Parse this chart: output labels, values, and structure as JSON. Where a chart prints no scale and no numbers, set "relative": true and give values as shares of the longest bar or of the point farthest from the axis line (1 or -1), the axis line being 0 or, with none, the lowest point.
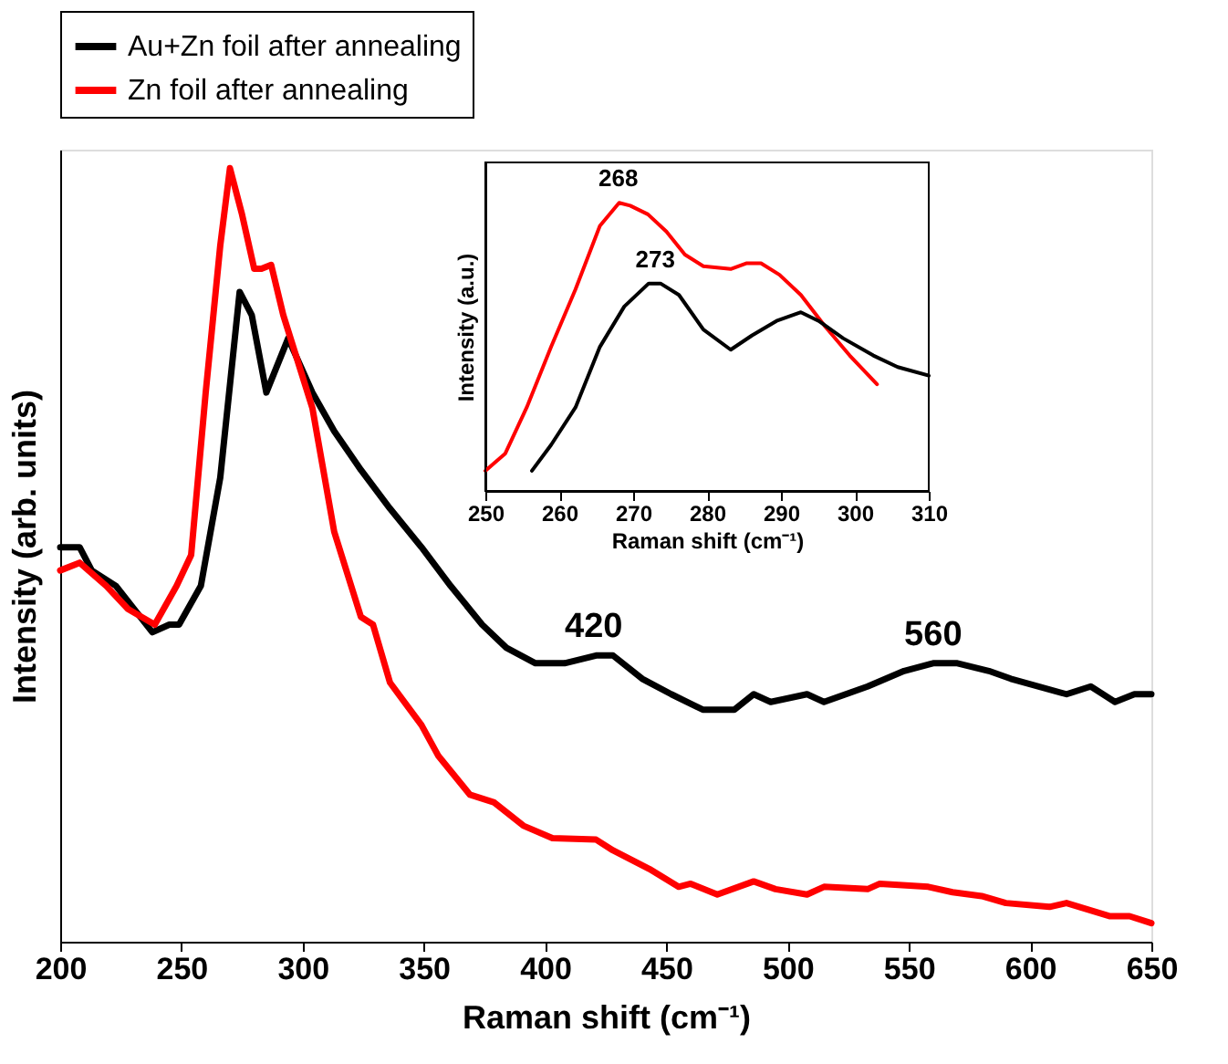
{
  "chart_data": [
    {
      "type": "line",
      "xlabel": "Raman shift (cm⁻¹)",
      "ylabel": "Intensity (arb. units)",
      "xlim": [
        200,
        650
      ],
      "xticks": [
        200,
        250,
        300,
        350,
        400,
        450,
        500,
        550,
        600,
        650
      ],
      "relative": true,
      "legend": "top",
      "series": [
        {
          "name": "Au+Zn foil after annealing",
          "color": "#000000",
          "x": [
            200,
            208,
            213,
            223,
            238,
            245,
            249,
            258,
            266,
            274,
            279,
            285,
            294,
            304,
            313,
            324,
            336,
            349,
            361,
            374,
            384,
            396,
            408,
            421,
            428,
            440,
            452,
            465,
            478,
            486,
            493,
            508,
            515,
            533,
            548,
            560,
            570,
            583,
            592,
            615,
            625,
            635,
            643,
            650
          ],
          "values": [
            0.51,
            0.51,
            0.48,
            0.46,
            0.4,
            0.41,
            0.41,
            0.46,
            0.6,
            0.84,
            0.81,
            0.71,
            0.78,
            0.71,
            0.66,
            0.61,
            0.56,
            0.51,
            0.46,
            0.41,
            0.38,
            0.36,
            0.36,
            0.37,
            0.37,
            0.34,
            0.32,
            0.3,
            0.3,
            0.32,
            0.31,
            0.32,
            0.31,
            0.33,
            0.35,
            0.36,
            0.36,
            0.35,
            0.34,
            0.32,
            0.33,
            0.31,
            0.32,
            0.32
          ]
        },
        {
          "name": "Zn foil after annealing",
          "color": "#ff0000",
          "x": [
            200,
            208,
            219,
            228,
            239,
            248,
            254,
            260,
            266,
            270,
            275,
            280,
            283,
            287,
            292,
            304,
            313,
            324,
            329,
            336,
            349,
            356,
            369,
            379,
            391,
            403,
            421,
            428,
            443,
            455,
            460,
            471,
            486,
            495,
            508,
            515,
            533,
            538,
            558,
            568,
            580,
            590,
            608,
            615,
            633,
            641,
            650
          ],
          "values": [
            0.48,
            0.49,
            0.46,
            0.43,
            0.41,
            0.46,
            0.5,
            0.71,
            0.9,
            1,
            0.94,
            0.87,
            0.87,
            0.875,
            0.81,
            0.69,
            0.53,
            0.42,
            0.41,
            0.335,
            0.28,
            0.24,
            0.19,
            0.18,
            0.15,
            0.134,
            0.132,
            0.118,
            0.094,
            0.071,
            0.075,
            0.061,
            0.078,
            0.068,
            0.061,
            0.071,
            0.068,
            0.075,
            0.071,
            0.064,
            0.059,
            0.05,
            0.045,
            0.05,
            0.033,
            0.033,
            0.024
          ]
        }
      ],
      "annotations": [
        {
          "text": "420",
          "x": 420,
          "y": 0.37
        },
        {
          "text": "560",
          "x": 560,
          "y": 0.36
        }
      ]
    },
    {
      "type": "line",
      "xlabel": "Raman shift (cm⁻¹)",
      "ylabel": "Intensity (a.u.)",
      "xlim": [
        250,
        310
      ],
      "xticks": [
        250,
        260,
        270,
        280,
        290,
        300,
        310
      ],
      "relative": true,
      "series": [
        {
          "color": "#ff0000",
          "x": [
            250,
            252.7,
            255.6,
            258.9,
            262.2,
            265.5,
            268.1,
            269.6,
            272,
            274.5,
            277,
            279.5,
            283.2,
            285.3,
            287.3,
            289.8,
            292.7,
            296,
            299.3,
            303
          ],
          "values": [
            0.07,
            0.13,
            0.29,
            0.5,
            0.7,
            0.92,
            1,
            0.99,
            0.96,
            0.9,
            0.82,
            0.78,
            0.77,
            0.79,
            0.79,
            0.75,
            0.68,
            0.57,
            0.47,
            0.37
          ]
        },
        {
          "color": "#000000",
          "x": [
            256.3,
            258.9,
            262.2,
            265.5,
            268.8,
            272.1,
            273.7,
            276.2,
            279.5,
            283.2,
            286.1,
            289.4,
            292.7,
            295.1,
            298.4,
            302.5,
            305.8,
            310
          ],
          "values": [
            0.07,
            0.16,
            0.29,
            0.5,
            0.64,
            0.72,
            0.72,
            0.68,
            0.56,
            0.49,
            0.54,
            0.59,
            0.62,
            0.59,
            0.53,
            0.47,
            0.43,
            0.4
          ]
        }
      ],
      "annotations": [
        {
          "text": "268",
          "x": 268,
          "y": 1.0
        },
        {
          "text": "273",
          "x": 273,
          "y": 0.72
        }
      ]
    }
  ]
}
